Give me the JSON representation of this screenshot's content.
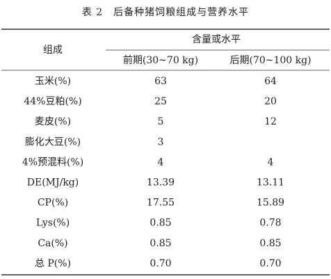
{
  "title": "表 2　后备种猪饲粮组成与营养水平",
  "table": {
    "header": {
      "row_label": "组成",
      "group": "含量或水平",
      "columns": [
        "前期(30~70 kg)",
        "后期(70~100 kg)"
      ]
    },
    "rows": [
      [
        "玉米(%)",
        "63",
        "64"
      ],
      [
        "44%豆粕(%)",
        "25",
        "20"
      ],
      [
        "麦皮(%)",
        "5",
        "12"
      ],
      [
        "膨化大豆(%)",
        "3",
        null
      ],
      [
        "4%预混料(%)",
        "4",
        "4"
      ],
      [
        "DE(MJ/kg)",
        "13.39",
        "13.11"
      ],
      [
        "CP(%)",
        "17.55",
        "15.89"
      ],
      [
        "Lys(%)",
        "0.85",
        "0.78"
      ],
      [
        "Ca(%)",
        "0.85",
        "0.85"
      ],
      [
        "总 P(%)",
        "0.70",
        "0.70"
      ]
    ]
  }
}
